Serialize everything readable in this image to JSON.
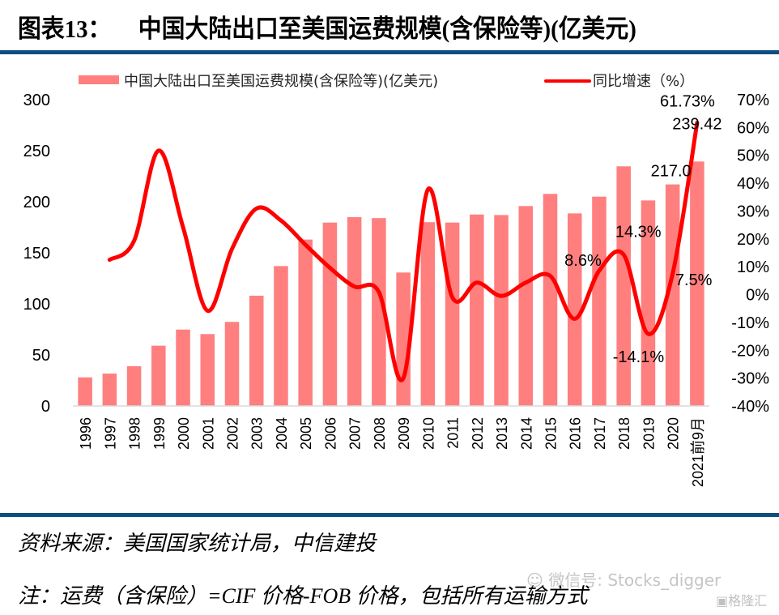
{
  "figure": {
    "number": "图表13：",
    "title": "中国大陆出口至美国运费规模(含保险等)(亿美元)"
  },
  "chart_data": {
    "type": "bar+line",
    "title": "中国大陆出口至美国运费规模(含保险等)(亿美元)",
    "categories": [
      "1996",
      "1997",
      "1998",
      "1999",
      "2000",
      "2001",
      "2002",
      "2003",
      "2004",
      "2005",
      "2006",
      "2007",
      "2008",
      "2009",
      "2010",
      "2011",
      "2012",
      "2013",
      "2014",
      "2015",
      "2016",
      "2017",
      "2018",
      "2019",
      "2020",
      "2021前9月"
    ],
    "series": [
      {
        "name": "中国大陆出口至美国运费规模(含保险等)(亿美元)",
        "type": "bar",
        "axis": "left",
        "color": "#ff7f7f",
        "values": [
          28,
          31.7,
          38.9,
          59,
          74.8,
          70.4,
          82.3,
          108,
          137,
          163,
          179.6,
          185,
          184,
          130.7,
          180,
          179.6,
          187.5,
          187,
          195.8,
          207.7,
          188.6,
          205,
          234.7,
          201.3,
          217.0,
          239.42
        ]
      },
      {
        "name": "同比增速（%）",
        "type": "line",
        "axis": "right",
        "color": "#ff0000",
        "values": [
          null,
          12.5,
          19.3,
          51.7,
          24.2,
          -5.8,
          16.4,
          30.9,
          26.6,
          17.9,
          9.6,
          2.9,
          0.9,
          -30,
          37.7,
          -1,
          4.3,
          -0.5,
          4.3,
          6.7,
          -8.7,
          8.6,
          14.3,
          -14.1,
          7.5,
          61.73
        ]
      }
    ],
    "data_labels": [
      {
        "category": "2017",
        "series": 1,
        "text": "8.6%"
      },
      {
        "category": "2018",
        "series": 1,
        "text": "14.3%"
      },
      {
        "category": "2019",
        "series": 1,
        "text": "-14.1%"
      },
      {
        "category": "2020",
        "series": 1,
        "text": "7.5%"
      },
      {
        "category": "2021前9月",
        "series": 1,
        "text": "61.73%"
      },
      {
        "category": "2020",
        "series": 0,
        "text": "217.0"
      },
      {
        "category": "2021前9月",
        "series": 0,
        "text": "239.42"
      }
    ],
    "y_left": {
      "min": 0,
      "max": 300,
      "ticks": [
        "0",
        "50",
        "100",
        "150",
        "200",
        "250",
        "300"
      ]
    },
    "y_right": {
      "min": -40,
      "max": 70,
      "ticks": [
        "-40%",
        "-30%",
        "-20%",
        "-10%",
        "0%",
        "10%",
        "20%",
        "30%",
        "40%",
        "50%",
        "60%",
        "70%"
      ]
    },
    "xlabel": "",
    "ylabel": "",
    "grid": false,
    "legend": {
      "position": "top",
      "entries": [
        "中国大陆出口至美国运费规模(含保险等)(亿美元)",
        "同比增速（%）"
      ]
    }
  },
  "footer": {
    "source": "资料来源：美国国家统计局，中信建投",
    "note": "注：运费（含保险）=CIF 价格-FOB 价格，包括所有运输方式"
  },
  "watermarks": {
    "wechat": "微信号: Stocks_digger",
    "brand": "格隆汇"
  }
}
